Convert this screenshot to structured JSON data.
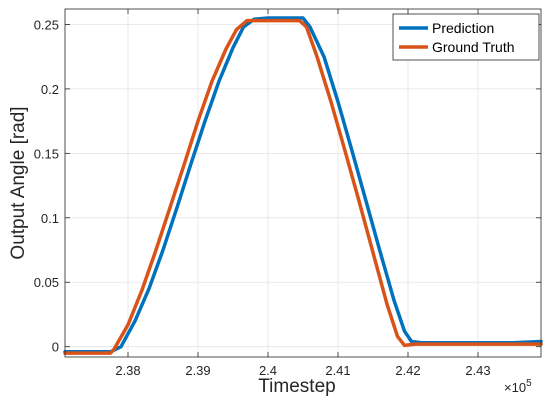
{
  "chart_data": {
    "type": "line",
    "title": "",
    "xlabel": "Timestep",
    "ylabel": "Output Angle [rad]",
    "x_multiplier_label": "×10",
    "x_multiplier_exponent": "5",
    "xlim": [
      2.371,
      2.439
    ],
    "ylim": [
      -0.008,
      0.262
    ],
    "x_ticks": [
      2.38,
      2.39,
      2.4,
      2.41,
      2.42,
      2.43
    ],
    "x_tick_labels": [
      "2.38",
      "2.39",
      "2.4",
      "2.41",
      "2.42",
      "2.43"
    ],
    "y_ticks": [
      0,
      0.05,
      0.1,
      0.15,
      0.2,
      0.25
    ],
    "y_tick_labels": [
      "0",
      "0.05",
      "0.1",
      "0.15",
      "0.2",
      "0.25"
    ],
    "grid": true,
    "legend_position": "top-right",
    "series": [
      {
        "name": "Prediction",
        "color": "#0072BD",
        "x": [
          2.371,
          2.3775,
          2.379,
          2.381,
          2.383,
          2.385,
          2.387,
          2.389,
          2.391,
          2.393,
          2.395,
          2.3965,
          2.398,
          2.4,
          2.402,
          2.404,
          2.405,
          2.406,
          2.408,
          2.41,
          2.412,
          2.414,
          2.416,
          2.418,
          2.4195,
          2.4205,
          2.422,
          2.425,
          2.43,
          2.435,
          2.439
        ],
        "y": [
          -0.004,
          -0.004,
          0.0,
          0.02,
          0.045,
          0.075,
          0.108,
          0.142,
          0.175,
          0.206,
          0.232,
          0.248,
          0.254,
          0.255,
          0.255,
          0.255,
          0.255,
          0.248,
          0.225,
          0.19,
          0.152,
          0.113,
          0.074,
          0.036,
          0.012,
          0.004,
          0.003,
          0.003,
          0.003,
          0.003,
          0.004
        ]
      },
      {
        "name": "Ground Truth",
        "color": "#D95319",
        "x": [
          2.371,
          2.3775,
          2.378,
          2.38,
          2.382,
          2.384,
          2.386,
          2.388,
          2.39,
          2.392,
          2.394,
          2.3955,
          2.397,
          2.399,
          2.401,
          2.403,
          2.4045,
          2.4055,
          2.407,
          2.409,
          2.411,
          2.413,
          2.415,
          2.417,
          2.4185,
          2.4195,
          2.421,
          2.425,
          2.43,
          2.435,
          2.439
        ],
        "y": [
          -0.005,
          -0.005,
          -0.002,
          0.017,
          0.044,
          0.075,
          0.108,
          0.141,
          0.175,
          0.206,
          0.231,
          0.246,
          0.253,
          0.253,
          0.253,
          0.253,
          0.253,
          0.248,
          0.225,
          0.19,
          0.152,
          0.113,
          0.073,
          0.033,
          0.008,
          0.001,
          0.002,
          0.002,
          0.002,
          0.002,
          0.002
        ]
      }
    ]
  }
}
